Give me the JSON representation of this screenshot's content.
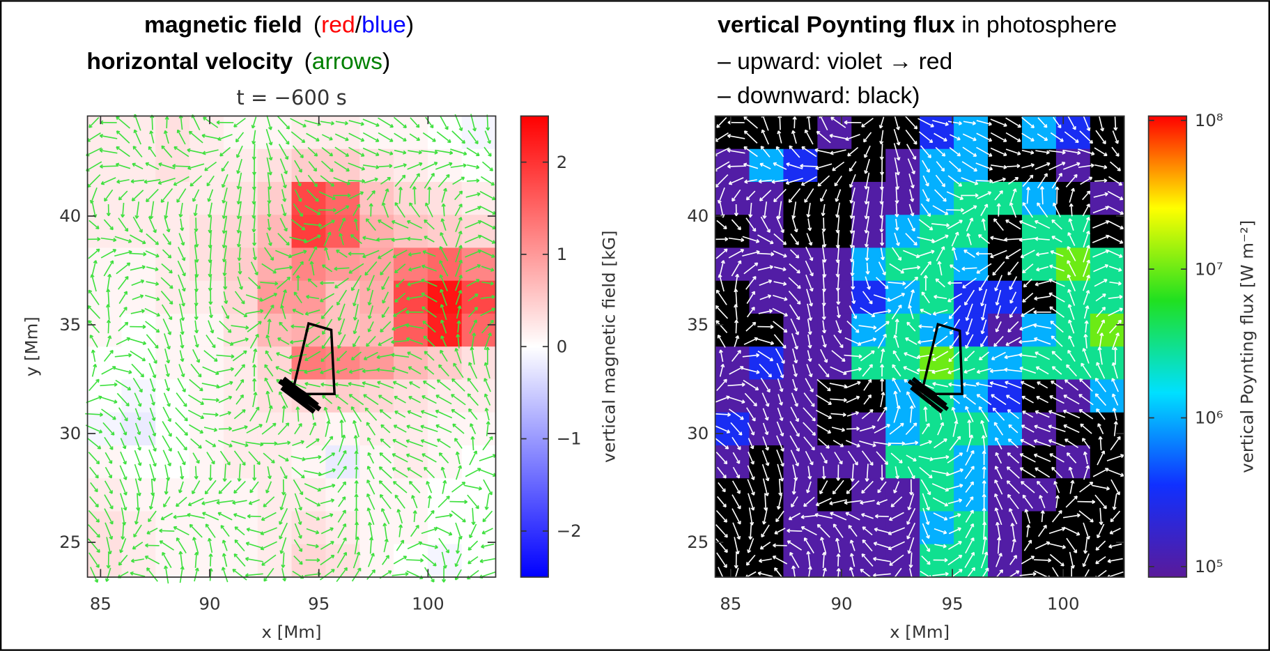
{
  "header": {
    "left_line1": [
      "magnetic field",
      "(",
      "red",
      "/",
      "blue",
      ")"
    ],
    "left_line2": [
      "horizontal velocity",
      "(",
      "arrows",
      ")"
    ],
    "right_line1": [
      "vertical Poynting flux",
      "in photosphere"
    ],
    "right_line2": "– upward:  violet → red",
    "right_line3": "– downward: black)"
  },
  "chart_data": [
    {
      "type": "heatmap",
      "title": "t = −600 s",
      "xlabel": "x [Mm]",
      "ylabel": "y [Mm]",
      "xlim": [
        84.4,
        103.1
      ],
      "ylim": [
        23.4,
        44.6
      ],
      "xticks": [
        85,
        90,
        95,
        100
      ],
      "yticks": [
        25,
        30,
        35,
        40
      ],
      "arrow_color": "#3ee03e",
      "z": [
        [
          0.2,
          0.2,
          0.3,
          0.2,
          0.1,
          0.1,
          0.2,
          0.2,
          0.1,
          0.1,
          0,
          -0.1
        ],
        [
          0.2,
          0.2,
          0.3,
          0.2,
          0.2,
          0.3,
          0.5,
          0.5,
          0.3,
          0.2,
          0.1,
          0
        ],
        [
          0.2,
          0.2,
          0.2,
          0.2,
          0.3,
          0.5,
          1.8,
          1.5,
          0.6,
          0.4,
          0.3,
          0.2
        ],
        [
          0.2,
          0.2,
          0.2,
          0.3,
          0.4,
          0.7,
          1.9,
          1.6,
          0.8,
          0.6,
          0.5,
          0.4
        ],
        [
          0.1,
          0.1,
          0.2,
          0.3,
          0.5,
          0.8,
          1.2,
          1.0,
          0.9,
          1.3,
          1.5,
          1.2
        ],
        [
          0.1,
          0.1,
          0.2,
          0.2,
          0.4,
          1.0,
          1.0,
          0.6,
          0.8,
          1.8,
          2.3,
          1.8
        ],
        [
          0.1,
          0,
          0.1,
          0.1,
          0.3,
          0.7,
          0.8,
          0.6,
          0.7,
          1.6,
          2.2,
          1.5
        ],
        [
          0,
          0,
          0.1,
          0.1,
          0.2,
          0.4,
          1.3,
          1.2,
          1.0,
          0.7,
          0.5,
          0.3
        ],
        [
          0,
          -0.1,
          0,
          0.1,
          0.2,
          0.3,
          0.4,
          0.5,
          0.4,
          0.3,
          0.2,
          0.2
        ],
        [
          -0.1,
          -0.2,
          0,
          0.1,
          0.2,
          0.2,
          0.2,
          0.1,
          0.2,
          0.2,
          0.1,
          0.1
        ],
        [
          0.1,
          0,
          0,
          0.1,
          0.2,
          0.2,
          0.1,
          -0.2,
          0.1,
          0.2,
          0.1,
          0
        ],
        [
          0.2,
          0.1,
          0.1,
          0.1,
          0.1,
          0.2,
          0.2,
          0.1,
          0.1,
          0.1,
          0,
          0
        ],
        [
          0.3,
          0.2,
          0.1,
          0.1,
          0.1,
          0.2,
          0.3,
          0.2,
          0.1,
          0.1,
          0,
          0
        ],
        [
          0.3,
          0.2,
          0.1,
          0.1,
          0.1,
          0.2,
          0.4,
          0.3,
          0.1,
          0,
          -0.1,
          0
        ]
      ],
      "colorbar": {
        "label": "vertical magnetic field [kG]",
        "lim": [
          -2.5,
          2.5
        ],
        "log": false,
        "ticks": [
          {
            "value": -2,
            "label": "−2"
          },
          {
            "value": -1,
            "label": "−1"
          },
          0,
          1,
          2
        ],
        "colors": [
          "#0000ff",
          "#ffffff",
          "#ff0000"
        ]
      }
    },
    {
      "type": "heatmap",
      "xlabel": "x [Mm]",
      "xlim": [
        84.3,
        102.75
      ],
      "ylim": [
        23.4,
        44.6
      ],
      "xticks": [
        85,
        90,
        95,
        100
      ],
      "yticks": [
        25,
        30,
        35,
        40
      ],
      "arrow_color": "#ffffff",
      "z": [
        [
          null,
          null,
          null,
          100000,
          null,
          null,
          300000,
          1000000,
          null,
          1000000,
          300000,
          null
        ],
        [
          100000,
          1000000,
          300000,
          null,
          null,
          100000,
          1000000,
          1000000,
          null,
          null,
          100000,
          null
        ],
        [
          100000,
          100000,
          null,
          null,
          100000,
          100000,
          1000000,
          3000000,
          3000000,
          1000000,
          null,
          100000
        ],
        [
          null,
          100000,
          null,
          null,
          100000,
          1000000,
          3000000,
          3000000,
          null,
          3000000,
          3000000,
          null
        ],
        [
          100000,
          100000,
          100000,
          100000,
          1000000,
          3000000,
          3000000,
          1000000,
          null,
          3000000,
          10000000,
          3000000
        ],
        [
          null,
          100000,
          100000,
          100000,
          300000,
          1000000,
          3000000,
          300000,
          300000,
          null,
          3000000,
          3000000
        ],
        [
          null,
          null,
          100000,
          100000,
          1000000,
          3000000,
          1000000,
          300000,
          100000,
          1000000,
          3000000,
          10000000
        ],
        [
          100000,
          300000,
          100000,
          100000,
          3000000,
          3000000,
          10000000,
          3000000,
          1000000,
          3000000,
          3000000,
          3000000
        ],
        [
          100000,
          100000,
          100000,
          null,
          null,
          1000000,
          3000000,
          1000000,
          300000,
          null,
          100000,
          1000000
        ],
        [
          300000,
          100000,
          100000,
          null,
          100000,
          1000000,
          3000000,
          3000000,
          1000000,
          100000,
          null,
          null
        ],
        [
          100000,
          null,
          100000,
          100000,
          100000,
          3000000,
          3000000,
          1000000,
          100000,
          null,
          100000,
          null
        ],
        [
          null,
          null,
          100000,
          null,
          100000,
          100000,
          3000000,
          1000000,
          100000,
          100000,
          null,
          null
        ],
        [
          null,
          null,
          100000,
          100000,
          100000,
          100000,
          1000000,
          3000000,
          100000,
          null,
          null,
          null
        ],
        [
          null,
          null,
          100000,
          100000,
          100000,
          100000,
          3000000,
          3000000,
          100000,
          null,
          null,
          null
        ]
      ],
      "colorbar": {
        "label": "vertical Poynting flux [W m⁻²]",
        "lim": [
          85000,
          107000000
        ],
        "log": true,
        "ticks": [
          {
            "value": 100000,
            "label": "10⁵"
          },
          {
            "value": 1000000,
            "label": "10⁶"
          },
          {
            "value": 10000000,
            "label": "10⁷"
          },
          {
            "value": 100000000,
            "label": "10⁸"
          }
        ],
        "colors": [
          "#5a1a9a",
          "#1030ff",
          "#00e0ff",
          "#20e020",
          "#ffff00",
          "#ff0000"
        ],
        "null_color": "#000000"
      }
    }
  ]
}
